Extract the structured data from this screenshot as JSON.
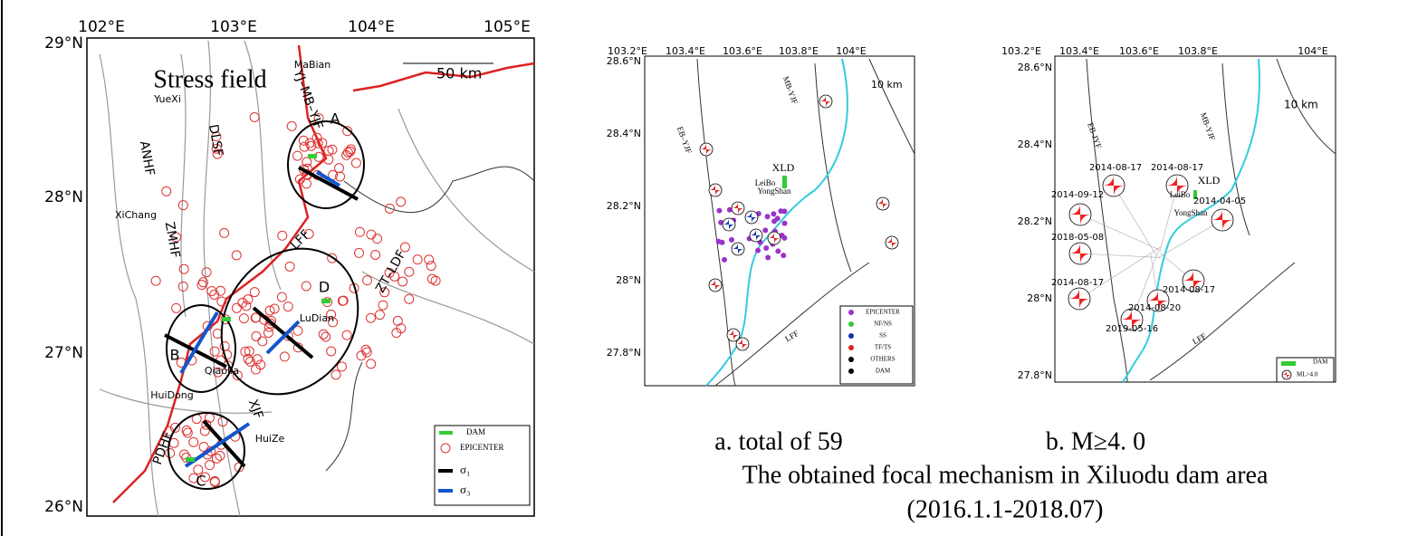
{
  "left_map": {
    "lon_labels": [
      "102°E",
      "103°E",
      "104°E",
      "105°E"
    ],
    "lat_labels": [
      "29°N",
      "28°N",
      "27°N",
      "26°N"
    ],
    "title": "Stress field",
    "scale": "50 km",
    "places": [
      "MaBian",
      "YueXi",
      "XiChang",
      "LuDian",
      "QiaoJia",
      "HuiDong",
      "HuiZe"
    ],
    "faults": [
      "YJ–MB–YJF",
      "DLSF",
      "ANHF",
      "ZMHF",
      "LFF",
      "ZT–LDF",
      "XJF",
      "PDHF"
    ],
    "zones": [
      "A",
      "B",
      "C",
      "D"
    ],
    "legend": [
      "DAM",
      "EPICENTER",
      "σ₁",
      "σ₃"
    ]
  },
  "map_a": {
    "lon_labels": [
      "103.2°E",
      "103.4°E",
      "103.6°E",
      "103.8°E",
      "104°E"
    ],
    "lat_labels": [
      "28.6°N",
      "28.4°N",
      "28.2°N",
      "28°N",
      "27.8°N"
    ],
    "scale": "10 km",
    "labels": [
      "EB–YJF",
      "MB-YJF",
      "XLD",
      "LeiBo",
      "YongShan",
      "LFF"
    ],
    "legend": [
      "EPICENTER",
      "NF/NS",
      "SS",
      "TF/TS",
      "OTHERS",
      "DAM"
    ]
  },
  "map_b": {
    "lon_labels": [
      "103.2°E",
      "103.4°E",
      "103.6°E",
      "103.8°E",
      "104°E"
    ],
    "lat_labels": [
      "28.6°N",
      "28.4°N",
      "28.2°N",
      "28°N",
      "27.8°N"
    ],
    "scale": "10 km",
    "labels": [
      "EB-JYF",
      "MB-YJF",
      "XLD",
      "LeiBo",
      "YongShan",
      "LFF"
    ],
    "dates": [
      "2014-08-17",
      "2014-08-17",
      "2014-09-12",
      "2014-04-05",
      "2018-05-08",
      "2014-08-17",
      "2014-08-17",
      "2014-08-20",
      "2019-05-16"
    ],
    "legend": [
      "DAM",
      "ML>4.0"
    ]
  },
  "caption": {
    "a": "a. total of  59",
    "b": "b. M≥4. 0",
    "line2": "The obtained focal  mechanism in Xiluodu dam area",
    "line3": "(2016.1.1-2018.07)"
  }
}
